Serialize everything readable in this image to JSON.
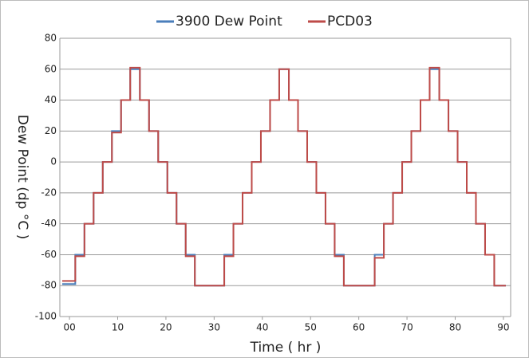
{
  "chart_data": {
    "type": "line",
    "xlabel": "Time ( hr )",
    "ylabel": "Dew Point (dp °C )",
    "x": [
      -1.5,
      1.2,
      1.2,
      3.1,
      3.1,
      5.0,
      5.0,
      6.9,
      6.9,
      8.8,
      8.8,
      10.7,
      10.7,
      12.6,
      12.6,
      14.6,
      14.6,
      16.5,
      16.5,
      18.4,
      18.4,
      20.3,
      20.3,
      22.2,
      22.2,
      24.1,
      24.1,
      26.0,
      26.0,
      32.1,
      32.1,
      34.0,
      34.0,
      35.9,
      35.9,
      37.8,
      37.8,
      39.7,
      39.7,
      41.6,
      41.6,
      43.5,
      43.5,
      45.5,
      45.5,
      47.4,
      47.4,
      49.3,
      49.3,
      51.2,
      51.2,
      53.1,
      53.1,
      55.0,
      55.0,
      56.9,
      56.9,
      63.3,
      63.3,
      65.2,
      65.2,
      67.1,
      67.1,
      69.0,
      69.0,
      70.9,
      70.9,
      72.8,
      72.8,
      74.7,
      74.7,
      76.7,
      76.7,
      78.6,
      78.6,
      80.5,
      80.5,
      82.4,
      82.4,
      84.3,
      84.3,
      86.2,
      86.2,
      88.1,
      88.1,
      90.5
    ],
    "series": [
      {
        "name": "3900 Dew Point",
        "color": "#4a7ebb",
        "values": [
          -79,
          -79,
          -60,
          -60,
          -40,
          -40,
          -20,
          -20,
          0,
          0,
          20,
          20,
          40,
          40,
          60,
          60,
          40,
          40,
          20,
          20,
          0,
          0,
          -20,
          -20,
          -40,
          -40,
          -60,
          -60,
          -80,
          -80,
          -60,
          -60,
          -40,
          -40,
          -20,
          -20,
          0,
          0,
          20,
          20,
          40,
          40,
          60,
          60,
          40,
          40,
          20,
          20,
          0,
          0,
          -20,
          -20,
          -40,
          -40,
          -60,
          -60,
          -80,
          -80,
          -60,
          -60,
          -40,
          -40,
          -20,
          -20,
          0,
          0,
          20,
          20,
          40,
          40,
          60,
          60,
          40,
          40,
          20,
          20,
          0,
          0,
          -20,
          -20,
          -40,
          -40,
          -60,
          -60,
          -80,
          -80
        ]
      },
      {
        "name": "PCD03",
        "color": "#be4b48",
        "values": [
          -77,
          -77,
          -61,
          -61,
          -40,
          -40,
          -20,
          -20,
          0,
          0,
          19,
          19,
          40,
          40,
          61,
          61,
          40,
          40,
          20,
          20,
          0,
          0,
          -20,
          -20,
          -40,
          -40,
          -61,
          -61,
          -80,
          -80,
          -61,
          -61,
          -40,
          -40,
          -20,
          -20,
          0,
          0,
          20,
          20,
          40,
          40,
          60,
          60,
          40,
          40,
          20,
          20,
          0,
          0,
          -20,
          -20,
          -40,
          -40,
          -61,
          -61,
          -80,
          -80,
          -62,
          -62,
          -40,
          -40,
          -20,
          -20,
          0,
          0,
          20,
          20,
          40,
          40,
          61,
          61,
          40,
          40,
          20,
          20,
          0,
          0,
          -20,
          -20,
          -40,
          -40,
          -60,
          -60,
          -80,
          -80
        ]
      }
    ],
    "xlim": [
      -2,
      91.5
    ],
    "xticks": [
      {
        "value": 0,
        "label": "00"
      },
      10,
      20,
      30,
      40,
      50,
      60,
      70,
      80,
      90
    ],
    "ylim": [
      -100,
      80
    ],
    "yticks": [
      -100,
      -80,
      -60,
      -40,
      -20,
      0,
      20,
      40,
      60,
      80
    ],
    "grid": true,
    "legend": "top"
  }
}
